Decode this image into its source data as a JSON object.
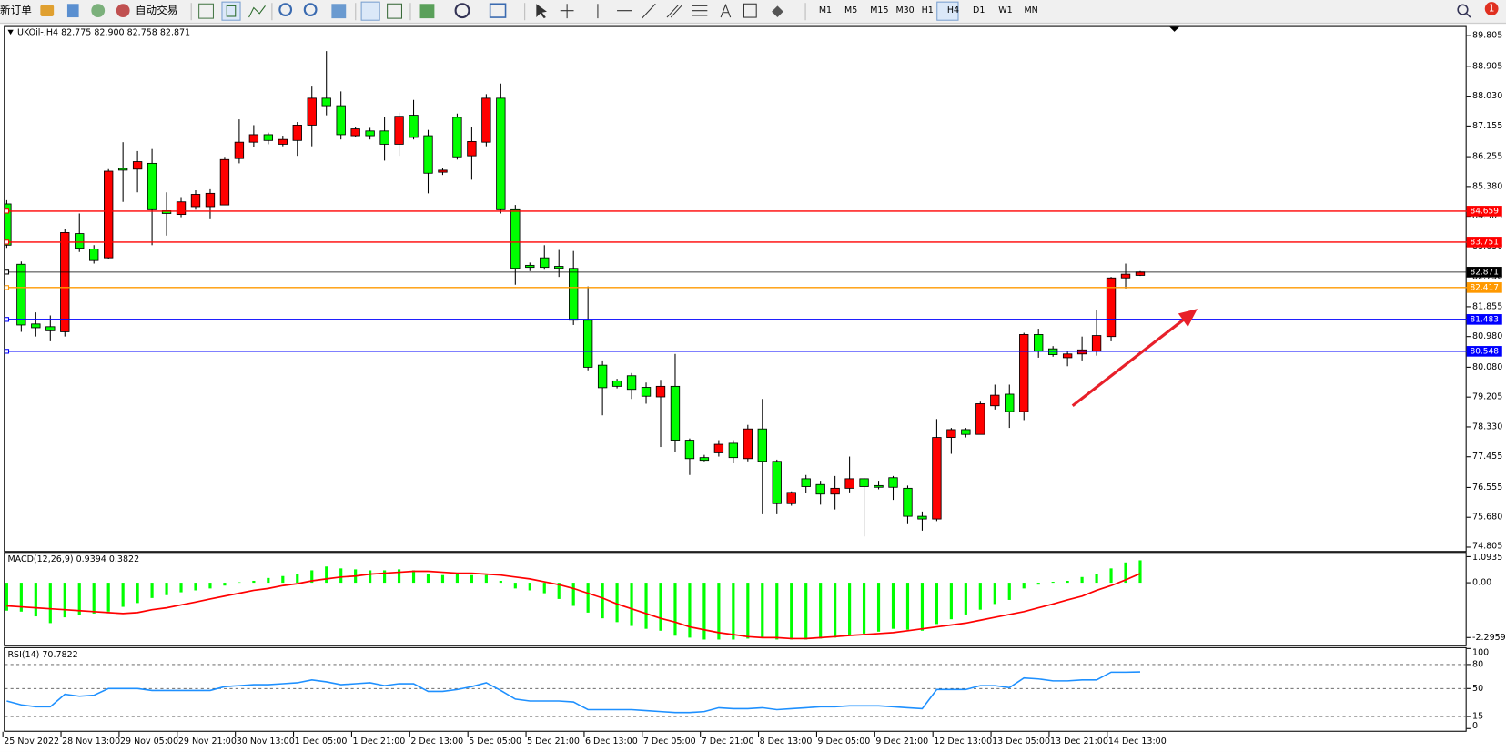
{
  "toolbar": {
    "new_order": "新订单",
    "auto_trading": "自动交易",
    "timeframes": [
      "M1",
      "M5",
      "M15",
      "M30",
      "H1",
      "H4",
      "D1",
      "W1",
      "MN"
    ],
    "notifications": "1"
  },
  "chart_data": [
    {
      "type": "candlestick",
      "title": "UKOil-,H4 82.775 82.900 82.758 82.871",
      "categories": [
        "25 Nov 2022",
        null,
        null,
        null,
        "28 Nov 13:00",
        null,
        null,
        null,
        "29 Nov 05:00",
        null,
        null,
        null,
        "29 Nov 21:00",
        null,
        null,
        null,
        "30 Nov 13:00",
        null,
        null,
        null,
        "1 Dec 05:00",
        null,
        null,
        null,
        "1 Dec 21:00",
        null,
        null,
        null,
        "2 Dec 13:00",
        null,
        null,
        null,
        "5 Dec 05:00",
        null,
        null,
        null,
        "5 Dec 21:00",
        null,
        null,
        null,
        "6 Dec 13:00",
        null,
        null,
        null,
        "7 Dec 05:00",
        null,
        null,
        null,
        "7 Dec 21:00",
        null,
        null,
        null,
        "8 Dec 13:00",
        null,
        null,
        null,
        "9 Dec 05:00",
        null,
        null,
        null,
        "9 Dec 21:00",
        null,
        null,
        null,
        "12 Dec 13:00",
        null,
        null,
        null,
        "13 Dec 05:00",
        null,
        null,
        null,
        "13 Dec 21:00",
        null,
        null,
        null,
        "14 Dec 13:00",
        null,
        null
      ],
      "open": [
        84.87,
        83.1,
        81.35,
        81.27,
        81.12,
        84.0,
        83.55,
        83.29,
        85.91,
        85.89,
        86.06,
        84.67,
        84.56,
        84.79,
        84.79,
        84.84,
        86.2,
        86.68,
        86.9,
        86.62,
        86.73,
        87.18,
        87.97,
        87.75,
        86.87,
        87.01,
        87.01,
        86.62,
        87.47,
        86.87,
        85.8,
        87.41,
        86.28,
        86.68,
        87.97,
        84.7,
        83.07,
        83.29,
        83.04,
        82.98,
        81.46,
        80.14,
        79.68,
        79.83,
        79.49,
        79.21,
        79.52,
        77.94,
        77.43,
        77.57,
        77.85,
        77.4,
        78.27,
        77.32,
        76.08,
        76.81,
        76.64,
        76.36,
        76.53,
        76.81,
        76.61,
        76.84,
        76.53,
        75.71,
        75.63,
        78.02,
        78.25,
        78.11,
        78.95,
        79.29,
        78.78,
        81.04,
        80.62,
        80.36,
        80.47,
        80.56,
        80.98,
        82.7,
        82.775
      ],
      "high": [
        84.98,
        83.18,
        81.69,
        81.6,
        84.14,
        84.59,
        83.66,
        85.89,
        86.68,
        86.42,
        86.48,
        85.21,
        85.07,
        85.27,
        85.3,
        86.25,
        87.35,
        87.18,
        86.96,
        86.87,
        87.27,
        88.31,
        89.35,
        88.17,
        87.13,
        87.1,
        87.41,
        87.55,
        87.92,
        87.04,
        85.91,
        87.52,
        87.13,
        88.09,
        88.4,
        84.84,
        83.15,
        83.66,
        83.52,
        83.49,
        82.45,
        80.28,
        79.74,
        79.91,
        79.63,
        79.71,
        80.47,
        77.99,
        77.51,
        77.94,
        77.94,
        78.39,
        79.15,
        77.37,
        76.44,
        76.92,
        76.75,
        76.89,
        77.46,
        76.83,
        76.75,
        76.89,
        76.61,
        75.85,
        78.56,
        78.3,
        78.3,
        79.07,
        79.57,
        79.57,
        81.09,
        81.21,
        80.7,
        80.56,
        80.98,
        81.77,
        82.73,
        83.12,
        82.9
      ],
      "low": [
        83.58,
        81.12,
        80.98,
        80.84,
        80.98,
        83.46,
        83.12,
        83.24,
        84.93,
        85.21,
        83.66,
        83.94,
        84.48,
        84.7,
        84.42,
        84.84,
        86.06,
        86.54,
        86.62,
        86.56,
        86.28,
        86.56,
        87.47,
        86.76,
        86.82,
        86.76,
        86.14,
        86.28,
        86.76,
        85.18,
        85.72,
        86.17,
        85.58,
        86.56,
        84.59,
        82.5,
        82.9,
        82.94,
        82.73,
        81.32,
        79.99,
        78.67,
        79.46,
        79.15,
        79.01,
        77.74,
        77.6,
        76.92,
        77.32,
        77.46,
        77.26,
        77.32,
        75.77,
        75.77,
        76.02,
        76.39,
        76.05,
        75.91,
        76.41,
        75.12,
        76.5,
        76.19,
        75.48,
        75.29,
        75.57,
        77.54,
        78.02,
        78.11,
        78.84,
        78.3,
        78.53,
        80.36,
        80.39,
        80.11,
        80.28,
        80.42,
        80.84,
        82.39,
        82.758
      ],
      "close": [
        83.66,
        81.32,
        81.24,
        81.15,
        84.03,
        83.57,
        83.21,
        85.83,
        85.86,
        86.11,
        84.7,
        84.59,
        84.93,
        85.15,
        85.18,
        86.17,
        86.68,
        86.9,
        86.73,
        86.76,
        87.18,
        87.97,
        87.75,
        86.9,
        87.07,
        86.87,
        86.62,
        87.44,
        86.82,
        85.77,
        85.86,
        86.25,
        86.7,
        87.97,
        84.7,
        82.98,
        83.01,
        83.01,
        82.98,
        81.46,
        80.08,
        79.48,
        79.52,
        79.43,
        79.23,
        79.52,
        77.94,
        77.4,
        77.35,
        77.82,
        77.43,
        78.27,
        77.32,
        76.08,
        76.41,
        76.58,
        76.36,
        76.53,
        76.81,
        76.58,
        76.56,
        76.56,
        75.71,
        75.63,
        78.02,
        78.25,
        78.11,
        79.01,
        79.26,
        78.78,
        81.04,
        80.56,
        80.45,
        80.47,
        80.59,
        81.01,
        82.7,
        82.81,
        82.871
      ],
      "up_color": "#ff0000",
      "down_color": "#00ff00",
      "ylim": [
        74.692,
        90.087
      ],
      "yticks": [
        89.805,
        88.905,
        {
          "value": 88.03,
          "label": "88.030"
        },
        87.155,
        86.255,
        {
          "value": 85.38,
          "label": "85.380"
        },
        84.505,
        {
          "value": 83.63,
          "label": "83.630"
        },
        {
          "value": 82.73,
          "label": "82.730"
        },
        81.855,
        {
          "value": 80.98,
          "label": "80.980"
        },
        {
          "value": 80.08,
          "label": "80.080"
        },
        79.205,
        {
          "value": 78.33,
          "label": "78.330"
        },
        77.455,
        76.555,
        {
          "value": 75.68,
          "label": "75.680"
        },
        74.805
      ],
      "levels": [
        {
          "value": 84.659,
          "color": "#ff0000"
        },
        {
          "value": 83.751,
          "color": "#ff0000"
        },
        {
          "value": 82.871,
          "color": "#000000"
        },
        {
          "value": 82.417,
          "color": "#ff9900"
        },
        {
          "value": 81.483,
          "color": "#0000ff"
        },
        {
          "value": 80.548,
          "color": "#0000ff"
        }
      ]
    },
    {
      "type": "macd",
      "title": "MACD(12,26,9) 0.9394 0.3822",
      "values": [
        -1.17,
        -1.21,
        -1.41,
        -1.69,
        -1.45,
        -1.37,
        -1.29,
        -1.21,
        -1.01,
        -0.85,
        -0.64,
        -0.52,
        -0.4,
        -0.32,
        -0.24,
        -0.12,
        0.02,
        0.08,
        0.2,
        0.28,
        0.36,
        0.52,
        0.68,
        0.6,
        0.56,
        0.52,
        0.52,
        0.56,
        0.52,
        0.36,
        0.32,
        0.36,
        0.32,
        0.32,
        0.08,
        -0.24,
        -0.32,
        -0.44,
        -0.68,
        -0.97,
        -1.25,
        -1.49,
        -1.65,
        -1.81,
        -1.93,
        -2.01,
        -2.22,
        -2.3,
        -2.38,
        -2.38,
        -2.38,
        -2.34,
        -2.3,
        -2.38,
        -2.38,
        -2.38,
        -2.34,
        -2.3,
        -2.17,
        -2.13,
        -2.05,
        -1.93,
        -1.97,
        -2.01,
        -1.73,
        -1.53,
        -1.33,
        -1.13,
        -0.89,
        -0.72,
        -0.24,
        -0.08,
        0.04,
        0.08,
        0.24,
        0.36,
        0.6,
        0.85,
        0.9394
      ],
      "signal": [
        -0.97,
        -1.01,
        -1.05,
        -1.09,
        -1.13,
        -1.17,
        -1.21,
        -1.25,
        -1.29,
        -1.25,
        -1.13,
        -1.05,
        -0.93,
        -0.81,
        -0.68,
        -0.56,
        -0.44,
        -0.32,
        -0.24,
        -0.12,
        -0.04,
        0.08,
        0.16,
        0.24,
        0.28,
        0.36,
        0.4,
        0.44,
        0.48,
        0.48,
        0.44,
        0.4,
        0.4,
        0.36,
        0.32,
        0.24,
        0.16,
        0.04,
        -0.08,
        -0.24,
        -0.44,
        -0.64,
        -0.89,
        -1.09,
        -1.29,
        -1.49,
        -1.65,
        -1.85,
        -1.97,
        -2.09,
        -2.17,
        -2.26,
        -2.3,
        -2.3,
        -2.34,
        -2.34,
        -2.3,
        -2.26,
        -2.21,
        -2.17,
        -2.13,
        -2.09,
        -2.01,
        -1.93,
        -1.85,
        -1.77,
        -1.69,
        -1.57,
        -1.45,
        -1.33,
        -1.21,
        -1.05,
        -0.89,
        -0.72,
        -0.56,
        -0.32,
        -0.12,
        0.12,
        0.3822
      ],
      "color": "#00ff00",
      "signal_color": "#ff0000",
      "ylim": [
        -2.618,
        1.249
      ],
      "yticks": [
        1.0935,
        {
          "value": 0,
          "label": "0.00"
        },
        -2.2959
      ]
    },
    {
      "type": "line",
      "title": "RSI(14) 70.7822",
      "values": [
        34.4,
        29.6,
        27.2,
        27.2,
        42.8,
        40.4,
        41.6,
        50.0,
        50.0,
        50.0,
        47.6,
        47.6,
        47.6,
        47.6,
        47.6,
        52.4,
        53.6,
        54.8,
        54.8,
        56.0,
        57.2,
        60.8,
        58.4,
        54.8,
        56.0,
        57.2,
        53.6,
        56.0,
        56.0,
        46.4,
        46.4,
        48.8,
        52.4,
        57.2,
        47.6,
        36.8,
        34.4,
        34.4,
        34.4,
        33.2,
        23.6,
        23.6,
        23.6,
        23.6,
        22.4,
        21.2,
        20.0,
        20.0,
        21.2,
        26.0,
        24.8,
        24.8,
        26.0,
        23.6,
        24.8,
        26.0,
        27.2,
        27.2,
        28.4,
        28.4,
        28.4,
        27.2,
        26.0,
        24.8,
        48.8,
        48.8,
        48.8,
        53.6,
        53.6,
        51.2,
        63.2,
        62.0,
        59.6,
        59.6,
        60.8,
        60.8,
        70.4,
        70.4,
        70.7822
      ],
      "color": "#1e90ff",
      "ylim": [
        -2.8,
        100.5
      ],
      "yticks": [
        100,
        80,
        50,
        15,
        0
      ],
      "levels": [
        80,
        50,
        15
      ]
    }
  ]
}
